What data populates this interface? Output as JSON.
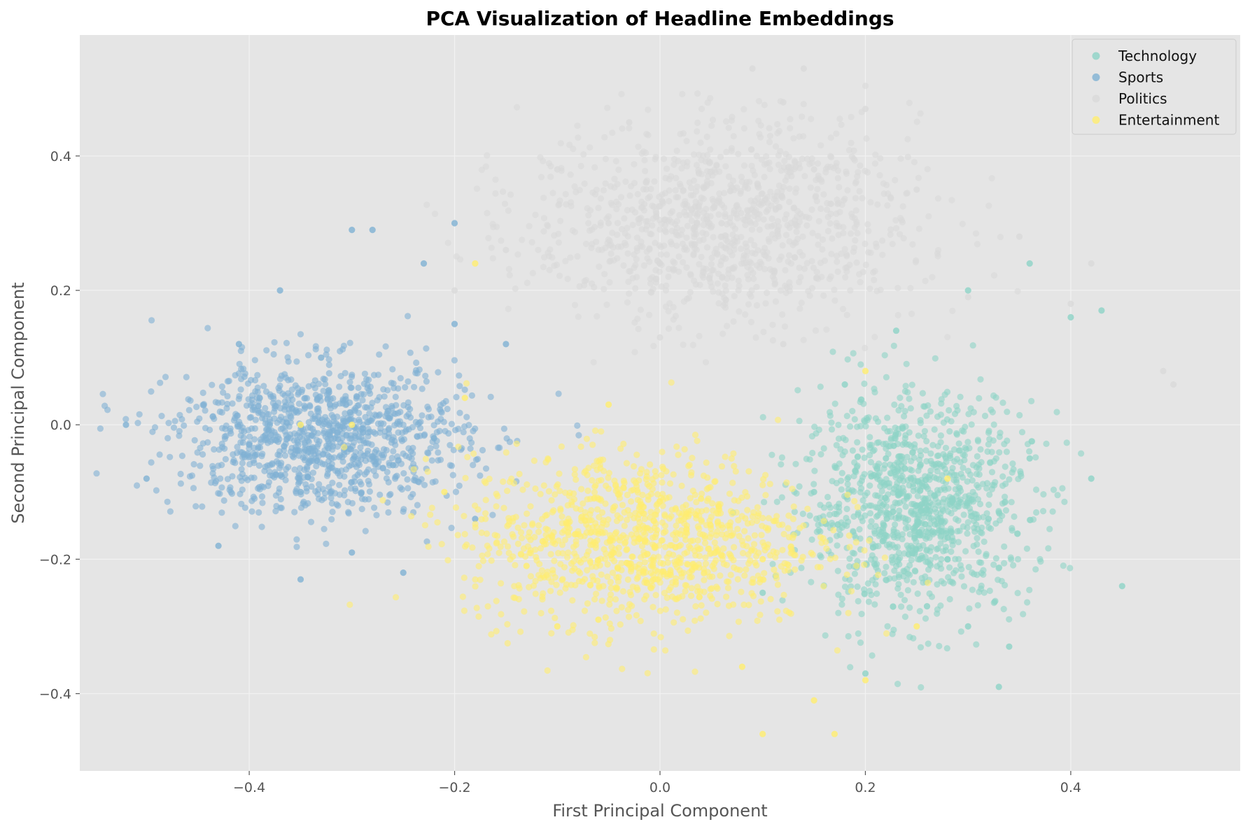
{
  "chart_data": {
    "type": "scatter",
    "title": "PCA Visualization of Headline Embeddings",
    "xlabel": "First Principal Component",
    "ylabel": "Second Principal Component",
    "xlim": [
      -0.565,
      0.565
    ],
    "ylim": [
      -0.515,
      0.58
    ],
    "xticks": [
      -0.4,
      -0.2,
      0.0,
      0.2,
      0.4
    ],
    "xtick_labels": [
      "−0.4",
      "−0.2",
      "0.0",
      "0.2",
      "0.4"
    ],
    "yticks": [
      -0.4,
      -0.2,
      0.0,
      0.2,
      0.4
    ],
    "ytick_labels": [
      "−0.4",
      "−0.2",
      "0.0",
      "0.2",
      "0.4"
    ],
    "grid": true,
    "legend_position": "top-right",
    "background": "#e5e5e5",
    "series": [
      {
        "name": "Technology",
        "color": "#8dd3c7",
        "center": [
          0.25,
          -0.12
        ],
        "spread": [
          0.055,
          0.08
        ],
        "points": [
          [
            0.25,
            -0.12
          ],
          [
            0.3,
            -0.3
          ],
          [
            0.34,
            -0.33
          ],
          [
            0.36,
            0.24
          ],
          [
            0.43,
            0.17
          ],
          [
            0.4,
            0.16
          ],
          [
            0.42,
            -0.08
          ],
          [
            0.45,
            -0.24
          ],
          [
            0.2,
            -0.37
          ],
          [
            0.33,
            -0.39
          ],
          [
            0.1,
            -0.25
          ],
          [
            0.18,
            0.06
          ],
          [
            0.23,
            0.14
          ],
          [
            0.3,
            0.2
          ],
          [
            0.36,
            -0.05
          ],
          [
            0.28,
            -0.2
          ],
          [
            0.15,
            -0.1
          ],
          [
            0.22,
            -0.05
          ],
          [
            0.32,
            -0.14
          ],
          [
            0.26,
            -0.27
          ]
        ]
      },
      {
        "name": "Sports",
        "color": "#80b1d3",
        "center": [
          -0.33,
          -0.02
        ],
        "spread": [
          0.07,
          0.055
        ],
        "points": [
          [
            -0.38,
            0.0
          ],
          [
            -0.3,
            0.29
          ],
          [
            -0.28,
            0.29
          ],
          [
            -0.2,
            0.3
          ],
          [
            -0.23,
            0.24
          ],
          [
            -0.37,
            0.2
          ],
          [
            -0.52,
            0.0
          ],
          [
            -0.5,
            -0.08
          ],
          [
            -0.35,
            -0.23
          ],
          [
            -0.43,
            -0.18
          ],
          [
            -0.3,
            -0.19
          ],
          [
            -0.25,
            -0.22
          ],
          [
            -0.18,
            -0.14
          ],
          [
            -0.2,
            0.15
          ],
          [
            -0.15,
            0.12
          ],
          [
            -0.26,
            -0.06
          ],
          [
            -0.33,
            0.1
          ],
          [
            -0.41,
            0.12
          ],
          [
            -0.22,
            -0.02
          ],
          [
            -0.35,
            -0.1
          ]
        ]
      },
      {
        "name": "Politics",
        "color": "#d9d9d9",
        "center": [
          0.06,
          0.3
        ],
        "spread": [
          0.095,
          0.075
        ],
        "points": [
          [
            0.06,
            0.3
          ],
          [
            0.09,
            0.53
          ],
          [
            0.14,
            0.53
          ],
          [
            0.12,
            0.48
          ],
          [
            -0.03,
            0.45
          ],
          [
            0.2,
            0.47
          ],
          [
            0.25,
            0.35
          ],
          [
            0.35,
            0.28
          ],
          [
            0.4,
            0.18
          ],
          [
            0.49,
            0.08
          ],
          [
            0.5,
            0.06
          ],
          [
            -0.1,
            0.38
          ],
          [
            -0.15,
            0.26
          ],
          [
            -0.2,
            0.2
          ],
          [
            0.0,
            0.13
          ],
          [
            0.12,
            0.12
          ],
          [
            0.3,
            0.19
          ],
          [
            0.42,
            0.24
          ],
          [
            -0.05,
            0.3
          ],
          [
            0.15,
            0.38
          ]
        ]
      },
      {
        "name": "Entertainment",
        "color": "#ffed6f",
        "center": [
          -0.02,
          -0.17
        ],
        "spread": [
          0.085,
          0.065
        ],
        "points": [
          [
            -0.02,
            -0.17
          ],
          [
            -0.06,
            -0.29
          ],
          [
            -0.13,
            -0.21
          ],
          [
            0.04,
            -0.11
          ],
          [
            -0.05,
            0.03
          ],
          [
            0.1,
            -0.2
          ],
          [
            0.2,
            -0.38
          ],
          [
            0.15,
            -0.41
          ],
          [
            0.17,
            -0.46
          ],
          [
            0.1,
            -0.46
          ],
          [
            0.08,
            -0.36
          ],
          [
            0.25,
            -0.3
          ],
          [
            0.28,
            -0.08
          ],
          [
            -0.19,
            0.04
          ],
          [
            -0.21,
            -0.1
          ],
          [
            -0.3,
            0.0
          ],
          [
            -0.35,
            0.0
          ],
          [
            -0.18,
            0.24
          ],
          [
            0.2,
            0.08
          ],
          [
            -0.1,
            -0.3
          ]
        ]
      }
    ]
  }
}
